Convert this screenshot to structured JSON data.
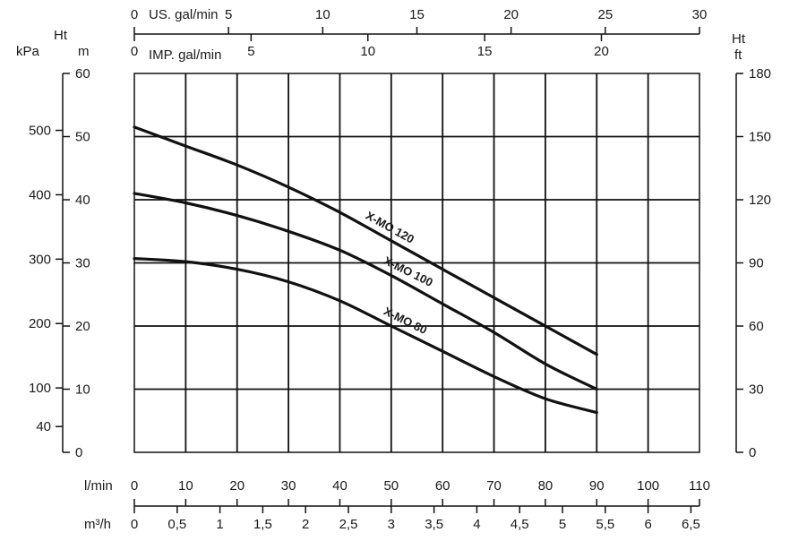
{
  "chart_data": {
    "type": "line",
    "title": "",
    "x_primary": {
      "label": "l/min",
      "range": [
        0,
        110
      ],
      "ticks": [
        0,
        10,
        20,
        30,
        40,
        50,
        60,
        70,
        80,
        90,
        100,
        110
      ]
    },
    "x_m3h": {
      "label": "m³/h",
      "range": [
        0,
        6.6
      ],
      "ticks": [
        "0",
        "0,5",
        "1",
        "1,5",
        "2",
        "2,5",
        "3",
        "3,5",
        "4",
        "4,5",
        "5",
        "5,5",
        "6",
        "6,5"
      ]
    },
    "x_us_gal": {
      "label": "US. gal/min",
      "range": [
        0,
        30
      ],
      "ticks": [
        0,
        5,
        10,
        15,
        20,
        25,
        30
      ]
    },
    "x_imp_gal": {
      "label": "IMP. gal/min",
      "range": [
        0,
        24.2
      ],
      "ticks": [
        0,
        5,
        10,
        15,
        20
      ]
    },
    "y_m": {
      "label": "Ht",
      "unit": "m",
      "range": [
        0,
        60
      ],
      "ticks": [
        0,
        10,
        20,
        30,
        40,
        50,
        60
      ]
    },
    "y_kpa": {
      "label": "kPa",
      "ticks": [
        40,
        100,
        200,
        300,
        400,
        500
      ]
    },
    "y_ft": {
      "label": "Ht",
      "unit": "ft",
      "range": [
        0,
        180
      ],
      "ticks": [
        0,
        30,
        60,
        90,
        120,
        150,
        180
      ]
    },
    "grid": true,
    "series": [
      {
        "name": "X-MO 120",
        "x": [
          0,
          10,
          20,
          30,
          40,
          50,
          60,
          70,
          80,
          90
        ],
        "y": [
          51.5,
          48.5,
          45.5,
          42,
          38,
          33.5,
          29,
          24.5,
          20,
          15.5
        ]
      },
      {
        "name": "X-MO 100",
        "x": [
          0,
          10,
          20,
          30,
          40,
          50,
          60,
          70,
          80,
          90
        ],
        "y": [
          41,
          39.5,
          37.5,
          35,
          32,
          28,
          23.5,
          19,
          14,
          10
        ]
      },
      {
        "name": "X-MO 80",
        "x": [
          0,
          10,
          20,
          30,
          40,
          50,
          60,
          70,
          80,
          90
        ],
        "y": [
          30.7,
          30.2,
          29,
          27,
          24,
          20,
          16,
          12,
          8.5,
          6.3
        ]
      }
    ]
  }
}
